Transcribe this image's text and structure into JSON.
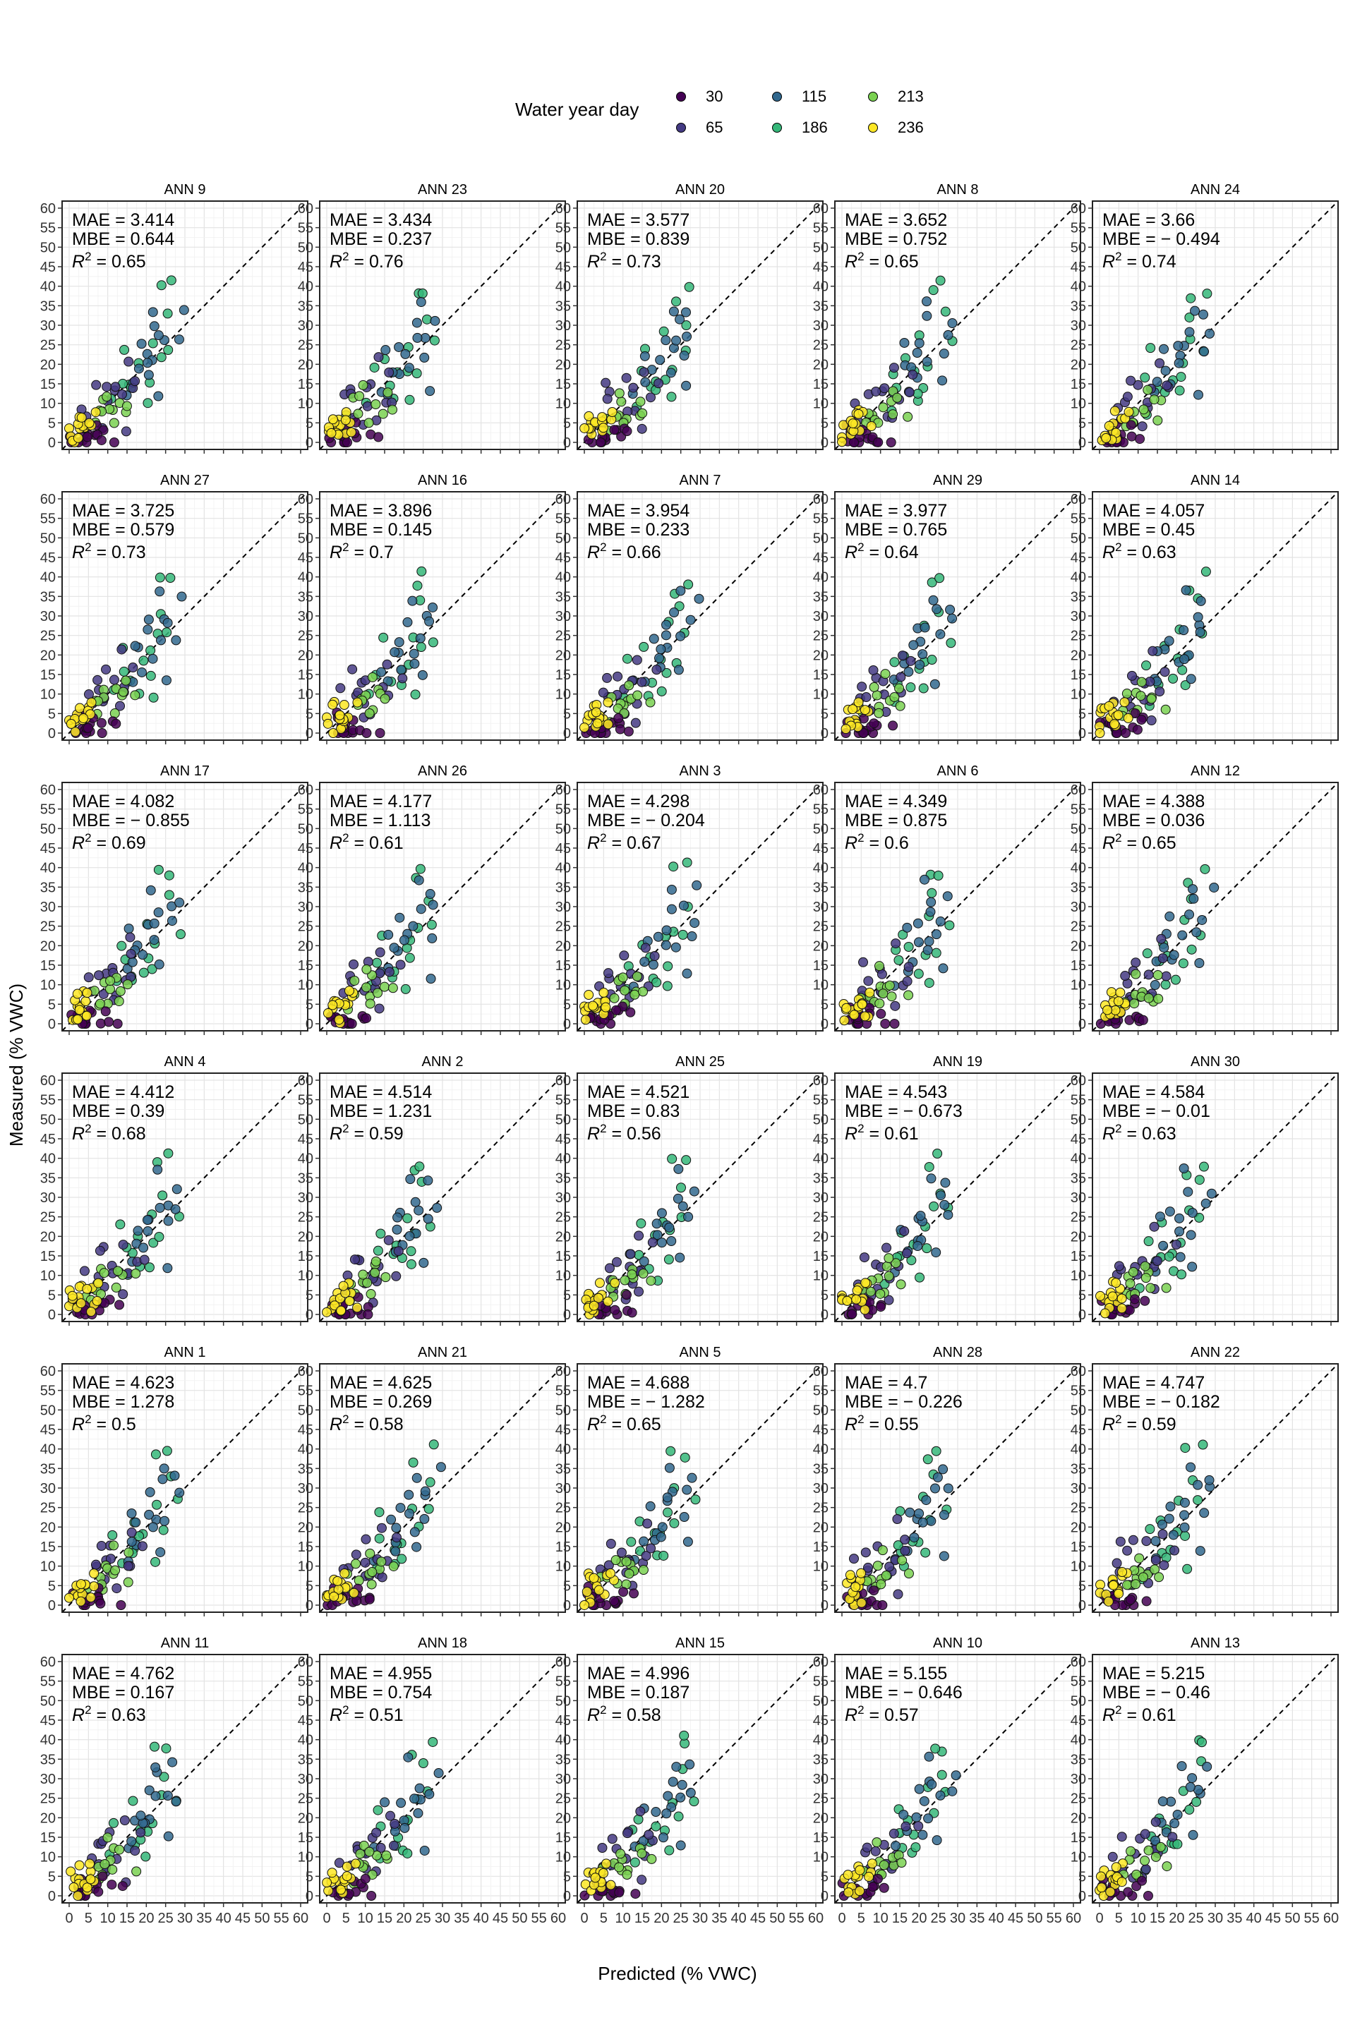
{
  "legend": {
    "title": "Water year day",
    "items": [
      {
        "label": "30",
        "color": "#440154"
      },
      {
        "label": "115",
        "color": "#31688e"
      },
      {
        "label": "213",
        "color": "#7ad151"
      },
      {
        "label": "65",
        "color": "#443a83"
      },
      {
        "label": "186",
        "color": "#35b779"
      },
      {
        "label": "236",
        "color": "#fde725"
      }
    ]
  },
  "y_axis_title": "Measured (% VWC)",
  "x_axis_title": "Predicted (% VWC)",
  "chart_data": {
    "type": "scatter",
    "xlabel": "Predicted (% VWC)",
    "ylabel": "Measured (% VWC)",
    "xlim": [
      0,
      60
    ],
    "ylim": [
      0,
      60
    ],
    "xticks": [
      "0",
      "5",
      "10",
      "15",
      "20",
      "25",
      "30",
      "35",
      "40",
      "45",
      "50",
      "55",
      "60"
    ],
    "yticks": [
      "0",
      "5",
      "10",
      "15",
      "20",
      "25",
      "30",
      "35",
      "40",
      "45",
      "50",
      "55",
      "60"
    ],
    "reference_line": "1:1 dashed",
    "grid": true,
    "series_days": [
      "30",
      "65",
      "115",
      "186",
      "213",
      "236"
    ],
    "panels": [
      {
        "title": "ANN 9",
        "mae": "MAE = 3.414",
        "mbe": "MBE = 0.644",
        "r2": "0.65"
      },
      {
        "title": "ANN 23",
        "mae": "MAE = 3.434",
        "mbe": "MBE = 0.237",
        "r2": "0.76"
      },
      {
        "title": "ANN 20",
        "mae": "MAE = 3.577",
        "mbe": "MBE = 0.839",
        "r2": "0.73"
      },
      {
        "title": "ANN 8",
        "mae": "MAE = 3.652",
        "mbe": "MBE = 0.752",
        "r2": "0.65"
      },
      {
        "title": "ANN 24",
        "mae": "MAE = 3.66",
        "mbe": "MBE = − 0.494",
        "r2": "0.74"
      },
      {
        "title": "ANN 27",
        "mae": "MAE = 3.725",
        "mbe": "MBE = 0.579",
        "r2": "0.73"
      },
      {
        "title": "ANN 16",
        "mae": "MAE = 3.896",
        "mbe": "MBE = 0.145",
        "r2": "0.7"
      },
      {
        "title": "ANN 7",
        "mae": "MAE = 3.954",
        "mbe": "MBE = 0.233",
        "r2": "0.66"
      },
      {
        "title": "ANN 29",
        "mae": "MAE = 3.977",
        "mbe": "MBE = 0.765",
        "r2": "0.64"
      },
      {
        "title": "ANN 14",
        "mae": "MAE = 4.057",
        "mbe": "MBE = 0.45",
        "r2": "0.63"
      },
      {
        "title": "ANN 17",
        "mae": "MAE = 4.082",
        "mbe": "MBE = − 0.855",
        "r2": "0.69"
      },
      {
        "title": "ANN 26",
        "mae": "MAE = 4.177",
        "mbe": "MBE = 1.113",
        "r2": "0.61"
      },
      {
        "title": "ANN 3",
        "mae": "MAE = 4.298",
        "mbe": "MBE = − 0.204",
        "r2": "0.67"
      },
      {
        "title": "ANN 6",
        "mae": "MAE = 4.349",
        "mbe": "MBE = 0.875",
        "r2": "0.6"
      },
      {
        "title": "ANN 12",
        "mae": "MAE = 4.388",
        "mbe": "MBE = 0.036",
        "r2": "0.65"
      },
      {
        "title": "ANN 4",
        "mae": "MAE = 4.412",
        "mbe": "MBE = 0.39",
        "r2": "0.68"
      },
      {
        "title": "ANN 2",
        "mae": "MAE = 4.514",
        "mbe": "MBE = 1.231",
        "r2": "0.59"
      },
      {
        "title": "ANN 25",
        "mae": "MAE = 4.521",
        "mbe": "MBE = 0.83",
        "r2": "0.56"
      },
      {
        "title": "ANN 19",
        "mae": "MAE = 4.543",
        "mbe": "MBE = − 0.673",
        "r2": "0.61"
      },
      {
        "title": "ANN 30",
        "mae": "MAE = 4.584",
        "mbe": "MBE = − 0.01",
        "r2": "0.63"
      },
      {
        "title": "ANN 1",
        "mae": "MAE = 4.623",
        "mbe": "MBE = 1.278",
        "r2": "0.5"
      },
      {
        "title": "ANN 21",
        "mae": "MAE = 4.625",
        "mbe": "MBE = 0.269",
        "r2": "0.58"
      },
      {
        "title": "ANN 5",
        "mae": "MAE = 4.688",
        "mbe": "MBE = − 1.282",
        "r2": "0.65"
      },
      {
        "title": "ANN 28",
        "mae": "MAE = 4.7",
        "mbe": "MBE = − 0.226",
        "r2": "0.55"
      },
      {
        "title": "ANN 22",
        "mae": "MAE = 4.747",
        "mbe": "MBE = − 0.182",
        "r2": "0.59"
      },
      {
        "title": "ANN 11",
        "mae": "MAE = 4.762",
        "mbe": "MBE = 0.167",
        "r2": "0.63"
      },
      {
        "title": "ANN 18",
        "mae": "MAE = 4.955",
        "mbe": "MBE = 0.754",
        "r2": "0.51"
      },
      {
        "title": "ANN 15",
        "mae": "MAE = 4.996",
        "mbe": "MBE = 0.187",
        "r2": "0.58"
      },
      {
        "title": "ANN 10",
        "mae": "MAE = 5.155",
        "mbe": "MBE = − 0.646",
        "r2": "0.57"
      },
      {
        "title": "ANN 13",
        "mae": "MAE = 5.215",
        "mbe": "MBE = − 0.46",
        "r2": "0.61"
      }
    ],
    "cluster_template": [
      {
        "day": "30",
        "points": [
          [
            2,
            1
          ],
          [
            3,
            0.5
          ],
          [
            4,
            2
          ],
          [
            5,
            1
          ],
          [
            6,
            0.5
          ],
          [
            3,
            3
          ],
          [
            7,
            2
          ],
          [
            8,
            1
          ],
          [
            2,
            2
          ],
          [
            5,
            0
          ],
          [
            9,
            3
          ],
          [
            6,
            3
          ],
          [
            4,
            0
          ],
          [
            10,
            2
          ],
          [
            12,
            1
          ]
        ]
      },
      {
        "day": "65",
        "points": [
          [
            6,
            8
          ],
          [
            8,
            12
          ],
          [
            10,
            15
          ],
          [
            12,
            14
          ],
          [
            5,
            10
          ],
          [
            9,
            6
          ],
          [
            14,
            10
          ],
          [
            7,
            14
          ],
          [
            16,
            12
          ],
          [
            11,
            9
          ],
          [
            15,
            20
          ],
          [
            13,
            5
          ],
          [
            18,
            16
          ]
        ]
      },
      {
        "day": "115",
        "points": [
          [
            14,
            12
          ],
          [
            18,
            20
          ],
          [
            20,
            25
          ],
          [
            22,
            22
          ],
          [
            24,
            30
          ],
          [
            26,
            24
          ],
          [
            19,
            17
          ],
          [
            23,
            35
          ],
          [
            27,
            28
          ],
          [
            16,
            15
          ],
          [
            21,
            19
          ],
          [
            25,
            14
          ],
          [
            28,
            33
          ],
          [
            22,
            27
          ],
          [
            17,
            23
          ]
        ]
      },
      {
        "day": "186",
        "points": [
          [
            12,
            9
          ],
          [
            16,
            14
          ],
          [
            19,
            18
          ],
          [
            22,
            26
          ],
          [
            24,
            38
          ],
          [
            20,
            16
          ],
          [
            25,
            32
          ],
          [
            18,
            12
          ],
          [
            23,
            20
          ],
          [
            27,
            25
          ],
          [
            15,
            22
          ],
          [
            26,
            40
          ],
          [
            21,
            11
          ],
          [
            13,
            17
          ]
        ]
      },
      {
        "day": "213",
        "points": [
          [
            6,
            5
          ],
          [
            8,
            9
          ],
          [
            10,
            10
          ],
          [
            12,
            8
          ],
          [
            9,
            7
          ],
          [
            14,
            11
          ],
          [
            11,
            13
          ],
          [
            7,
            6
          ],
          [
            13,
            9
          ],
          [
            16,
            8
          ],
          [
            10,
            4
          ]
        ]
      },
      {
        "day": "236",
        "points": [
          [
            1,
            3
          ],
          [
            2,
            4
          ],
          [
            3,
            2
          ],
          [
            4,
            5
          ],
          [
            3,
            6
          ],
          [
            5,
            3
          ],
          [
            2,
            5
          ],
          [
            6,
            4
          ],
          [
            4,
            3
          ],
          [
            1,
            2
          ],
          [
            3,
            4
          ],
          [
            5,
            6
          ],
          [
            2,
            3
          ],
          [
            6,
            7
          ],
          [
            4,
            6
          ]
        ]
      }
    ]
  }
}
